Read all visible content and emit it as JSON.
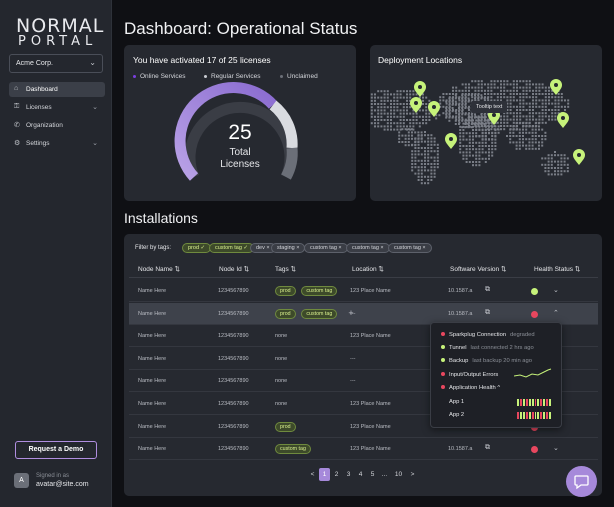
{
  "brand": {
    "line1": "NORMAL",
    "line2": "PORTAL"
  },
  "org": {
    "selected": "Acme Corp."
  },
  "nav": [
    {
      "label": "Dashboard",
      "icon": "home-icon"
    },
    {
      "label": "Licenses",
      "icon": "key-icon"
    },
    {
      "label": "Organization",
      "icon": "phone-icon"
    },
    {
      "label": "Settings",
      "icon": "gear-icon"
    }
  ],
  "sidebar": {
    "demo_label": "Request a Demo",
    "signed_in_as": "Signed in as",
    "email": "avatar@site.com",
    "avatar_initial": "A"
  },
  "page_title": "Dashboard: Operational Status",
  "licenses": {
    "title": "You have activated 17 of 25 licenses",
    "legend": [
      "Online Services",
      "Regular Services",
      "Unclaimed"
    ],
    "total": "25",
    "total_label_1": "Total",
    "total_label_2": "Licenses",
    "activated_fraction": 0.68
  },
  "deployment": {
    "title": "Deployment Locations",
    "tooltip": "Tooltip text"
  },
  "installations": {
    "title": "Installations",
    "filter_label": "Filter by tags:",
    "filter_tags": [
      "prod ✓",
      "custom tag ✓",
      "dev ×",
      "staging ×",
      "custom tag ×",
      "custom tag ×",
      "custom tag ×"
    ],
    "columns": [
      "Node Name",
      "Node Id",
      "Tags",
      "Location",
      "Software Version",
      "Health Status"
    ],
    "rows": [
      {
        "name": "Name Here",
        "id": "1234567890",
        "tags": [
          "prod",
          "custom tag"
        ],
        "location": "123 Place Name",
        "version": "10.1587.a"
      },
      {
        "name": "Name Here",
        "id": "1234567890",
        "tags": [
          "prod",
          "custom tag",
          "+"
        ],
        "location": "---",
        "version": "10.1587.a"
      },
      {
        "name": "Name Here",
        "id": "1234567890",
        "tags": [
          "none"
        ],
        "location": "123 Place Name",
        "version": "10.1587.a"
      },
      {
        "name": "Name Here",
        "id": "1234567890",
        "tags": [
          "none"
        ],
        "location": "---",
        "version": "10.1587.a"
      },
      {
        "name": "Name Here",
        "id": "1234567890",
        "tags": [
          "none"
        ],
        "location": "---",
        "version": "10.1587.a"
      },
      {
        "name": "Name Here",
        "id": "1234567890",
        "tags": [
          "none"
        ],
        "location": "123 Place Name",
        "version": "10.1587.a"
      },
      {
        "name": "Name Here",
        "id": "1234567890",
        "tags": [
          "prod"
        ],
        "location": "123 Place Name",
        "version": "10.1587.a"
      },
      {
        "name": "Name Here",
        "id": "1234567890",
        "tags": [
          "custom tag"
        ],
        "location": "123 Place Name",
        "version": "10.1587.a"
      }
    ],
    "pages": [
      "<",
      "1",
      "2",
      "3",
      "4",
      "5",
      "...",
      "10",
      ">"
    ]
  },
  "health_popup": [
    {
      "label": "Sparkplug Connection",
      "sub": "degraded",
      "status": "red"
    },
    {
      "label": "Tunnel",
      "sub": "last connected 2 hrs ago",
      "status": "green"
    },
    {
      "label": "Backup",
      "sub": "last backup 20 min ago",
      "status": "green"
    },
    {
      "label": "Input/Output Errors",
      "sub": "",
      "status": "red"
    },
    {
      "label": "Application Health ^",
      "sub": "",
      "status": "red"
    },
    {
      "label": "App 1",
      "sub": "",
      "status": "none"
    },
    {
      "label": "App 2",
      "sub": "",
      "status": "none"
    }
  ],
  "colors": {
    "accent": "#a689da",
    "ok": "#c6f27a",
    "bad": "#e8475f"
  }
}
